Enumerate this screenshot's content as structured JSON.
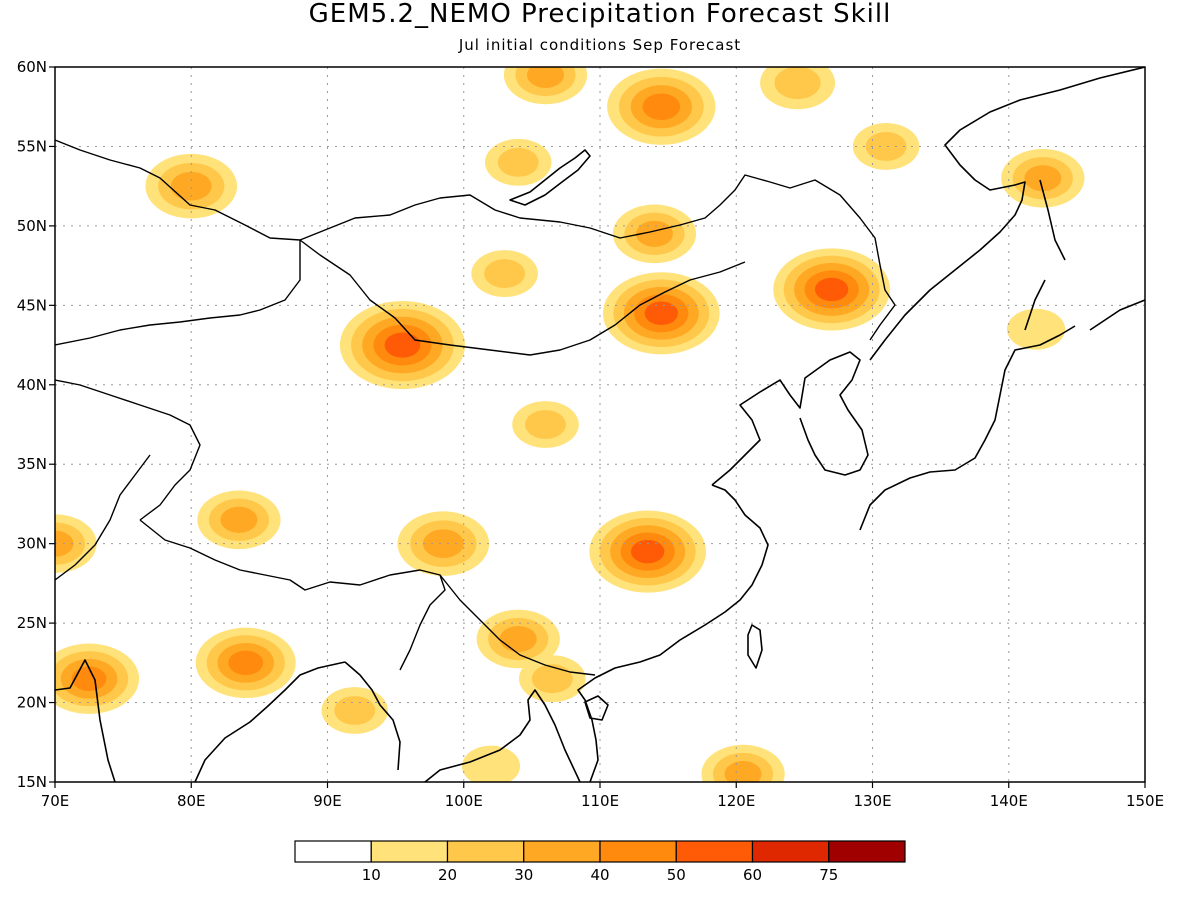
{
  "title": "GEM5.2_NEMO Precipitation Forecast Skill",
  "subtitle": "Jul initial conditions  Sep Forecast",
  "map": {
    "lon_range": [
      70,
      150
    ],
    "lat_range": [
      15,
      60
    ],
    "lon_ticks": [
      {
        "value": 70,
        "label": "70E"
      },
      {
        "value": 80,
        "label": "80E"
      },
      {
        "value": 90,
        "label": "90E"
      },
      {
        "value": 100,
        "label": "100E"
      },
      {
        "value": 110,
        "label": "110E"
      },
      {
        "value": 120,
        "label": "120E"
      },
      {
        "value": 130,
        "label": "130E"
      },
      {
        "value": 140,
        "label": "140E"
      },
      {
        "value": 150,
        "label": "150E"
      }
    ],
    "lat_ticks": [
      {
        "value": 15,
        "label": "15N"
      },
      {
        "value": 20,
        "label": "20N"
      },
      {
        "value": 25,
        "label": "25N"
      },
      {
        "value": 30,
        "label": "30N"
      },
      {
        "value": 35,
        "label": "35N"
      },
      {
        "value": 40,
        "label": "40N"
      },
      {
        "value": 45,
        "label": "45N"
      },
      {
        "value": 50,
        "label": "50N"
      },
      {
        "value": 55,
        "label": "55N"
      },
      {
        "value": 60,
        "label": "60N"
      }
    ],
    "grid": true,
    "projection": "cylindrical equidistant"
  },
  "colorbar": {
    "orientation": "horizontal",
    "position": "bottom",
    "boundaries": [
      "10",
      "20",
      "30",
      "40",
      "50",
      "60",
      "75"
    ],
    "colors": [
      "#ffffff",
      "#ffe27a",
      "#ffc84a",
      "#ffa823",
      "#ff8a0e",
      "#ff5a05",
      "#e02800",
      "#a00000"
    ]
  },
  "chart_data": {
    "type": "heatmap",
    "variable": "precipitation forecast skill",
    "units": "",
    "levels": [
      10,
      20,
      30,
      40,
      50,
      60,
      75
    ],
    "regions": [
      {
        "lon": 114.5,
        "lat": 57.5,
        "value": 45
      },
      {
        "lon": 106,
        "lat": 59.5,
        "value": 30
      },
      {
        "lon": 124.5,
        "lat": 59,
        "value": 25
      },
      {
        "lon": 104,
        "lat": 54,
        "value": 20
      },
      {
        "lon": 131,
        "lat": 55,
        "value": 20
      },
      {
        "lon": 80,
        "lat": 52.5,
        "value": 35
      },
      {
        "lon": 114,
        "lat": 49.5,
        "value": 30
      },
      {
        "lon": 95.5,
        "lat": 42.5,
        "value": 55
      },
      {
        "lon": 114.5,
        "lat": 44.5,
        "value": 50
      },
      {
        "lon": 127,
        "lat": 46,
        "value": 50
      },
      {
        "lon": 103,
        "lat": 47,
        "value": 20
      },
      {
        "lon": 106,
        "lat": 37.5,
        "value": 20
      },
      {
        "lon": 83.5,
        "lat": 31.5,
        "value": 30
      },
      {
        "lon": 98.5,
        "lat": 30,
        "value": 35
      },
      {
        "lon": 113.5,
        "lat": 29.5,
        "value": 50
      },
      {
        "lon": 104,
        "lat": 24,
        "value": 30
      },
      {
        "lon": 84,
        "lat": 22.5,
        "value": 40
      },
      {
        "lon": 72.5,
        "lat": 21.5,
        "value": 40
      },
      {
        "lon": 70,
        "lat": 30,
        "value": 30
      },
      {
        "lon": 92,
        "lat": 19.5,
        "value": 20
      },
      {
        "lon": 102,
        "lat": 16,
        "value": 15
      },
      {
        "lon": 142,
        "lat": 43.5,
        "value": 15
      },
      {
        "lon": 142.5,
        "lat": 53,
        "value": 30
      },
      {
        "lon": 120.5,
        "lat": 15.5,
        "value": 30
      },
      {
        "lon": 106.5,
        "lat": 21.5,
        "value": 20
      }
    ]
  }
}
